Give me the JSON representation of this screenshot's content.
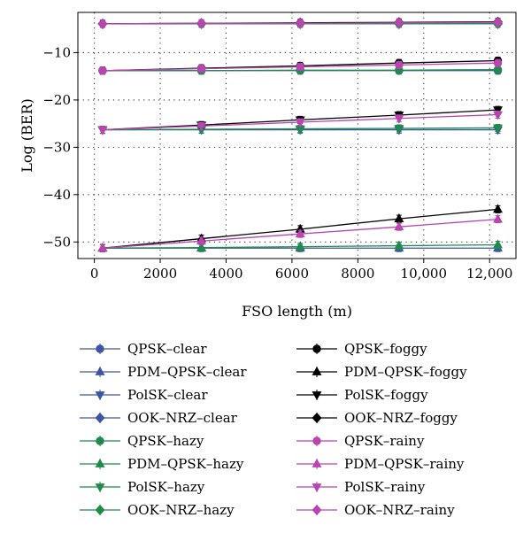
{
  "chart_data": {
    "type": "line",
    "title": "",
    "xlabel": "FSO length (m)",
    "ylabel": "Log (BER)",
    "xlim": [
      -500,
      12800
    ],
    "ylim": [
      -53.5,
      -1.5
    ],
    "x": [
      250,
      3250,
      6250,
      9250,
      12250
    ],
    "x_ticks": [
      0,
      2000,
      4000,
      6000,
      8000,
      10000,
      12000
    ],
    "x_tick_labels": [
      "0",
      "2000",
      "4000",
      "6000",
      "8000",
      "10,000",
      "12,000"
    ],
    "y_ticks": [
      -50,
      -40,
      -30,
      -20,
      -10
    ],
    "y_tick_labels": [
      "−50",
      "−40",
      "−30",
      "−20",
      "−10"
    ],
    "grid": "dotted",
    "legend_position": "below",
    "colors": {
      "clear": "#3d55a5",
      "hazy": "#1f8a4c",
      "foggy": "#000000",
      "rainy": "#b945b0"
    },
    "series": [
      {
        "name": "QPSK–clear",
        "condition": "clear",
        "marker": "circle",
        "values": [
          -13.8,
          -13.8,
          -13.8,
          -13.8,
          -13.8
        ]
      },
      {
        "name": "PDM–QPSK–clear",
        "condition": "clear",
        "marker": "triangle-up",
        "values": [
          -51.3,
          -51.3,
          -51.3,
          -51.3,
          -51.3
        ]
      },
      {
        "name": "PolSK–clear",
        "condition": "clear",
        "marker": "triangle-down",
        "values": [
          -26.3,
          -26.3,
          -26.3,
          -26.3,
          -26.3
        ]
      },
      {
        "name": "OOK–NRZ–clear",
        "condition": "clear",
        "marker": "diamond",
        "values": [
          -3.9,
          -3.9,
          -3.9,
          -3.9,
          -3.9
        ]
      },
      {
        "name": "QPSK–hazy",
        "condition": "hazy",
        "marker": "circle",
        "values": [
          -13.8,
          -13.8,
          -13.7,
          -13.7,
          -13.6
        ]
      },
      {
        "name": "PDM–QPSK–hazy",
        "condition": "hazy",
        "marker": "triangle-up",
        "values": [
          -51.3,
          -51.2,
          -51.0,
          -50.8,
          -50.6
        ]
      },
      {
        "name": "PolSK–hazy",
        "condition": "hazy",
        "marker": "triangle-down",
        "values": [
          -26.3,
          -26.2,
          -26.1,
          -26.0,
          -25.9
        ]
      },
      {
        "name": "OOK–NRZ–hazy",
        "condition": "hazy",
        "marker": "diamond",
        "values": [
          -3.9,
          -3.9,
          -3.9,
          -3.9,
          -3.9
        ]
      },
      {
        "name": "QPSK–foggy",
        "condition": "foggy",
        "marker": "circle",
        "values": [
          -13.8,
          -13.3,
          -12.8,
          -12.2,
          -11.7
        ]
      },
      {
        "name": "PDM–QPSK–foggy",
        "condition": "foggy",
        "marker": "triangle-up",
        "values": [
          -51.3,
          -49.3,
          -47.3,
          -45.1,
          -43.1
        ]
      },
      {
        "name": "PolSK–foggy",
        "condition": "foggy",
        "marker": "triangle-down",
        "values": [
          -26.3,
          -25.3,
          -24.2,
          -23.2,
          -22.1
        ]
      },
      {
        "name": "OOK–NRZ–foggy",
        "condition": "foggy",
        "marker": "diamond",
        "values": [
          -3.9,
          -3.8,
          -3.7,
          -3.6,
          -3.5
        ]
      },
      {
        "name": "QPSK–rainy",
        "condition": "rainy",
        "marker": "circle",
        "values": [
          -13.8,
          -13.4,
          -13.0,
          -12.6,
          -12.2
        ]
      },
      {
        "name": "PDM–QPSK–rainy",
        "condition": "rainy",
        "marker": "triangle-up",
        "values": [
          -51.3,
          -49.8,
          -48.3,
          -46.8,
          -45.2
        ]
      },
      {
        "name": "PolSK–rainy",
        "condition": "rainy",
        "marker": "triangle-down",
        "values": [
          -26.3,
          -25.5,
          -24.7,
          -23.9,
          -23.1
        ]
      },
      {
        "name": "OOK–NRZ–rainy",
        "condition": "rainy",
        "marker": "diamond",
        "values": [
          -3.9,
          -3.8,
          -3.8,
          -3.7,
          -3.6
        ]
      }
    ]
  }
}
